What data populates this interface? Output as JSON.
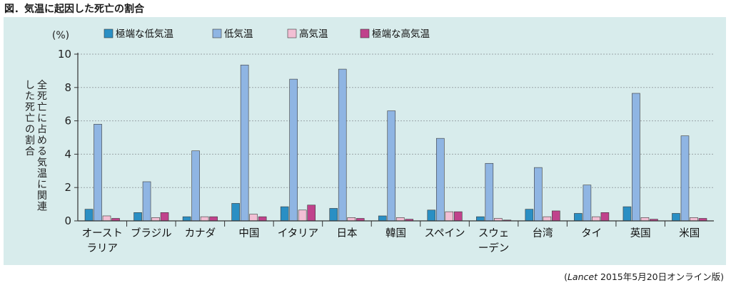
{
  "figure_title": "図．気温に起因した死亡の割合",
  "source_journal": "Lancet",
  "source_rest": " 2015年5月20日オンライン版)",
  "source_open": "(",
  "colors": {
    "panel_bg": "#d8ecec",
    "series": [
      "#2a8fc4",
      "#8fb5e3",
      "#f2bfd4",
      "#c0428c"
    ]
  },
  "chart_data": {
    "type": "bar",
    "y_unit": "(%)",
    "ylabel": "全死亡に占める気温に関連した死亡の割合",
    "ylim": [
      0,
      10
    ],
    "yticks": [
      "0",
      "2",
      "4",
      "6",
      "8",
      "10"
    ],
    "grid": true,
    "legend_position": "top",
    "categories": [
      [
        "オースト",
        "ラリア"
      ],
      [
        "ブラジル"
      ],
      [
        "カナダ"
      ],
      [
        "中国"
      ],
      [
        "イタリア"
      ],
      [
        "日本"
      ],
      [
        "韓国"
      ],
      [
        "スペイン"
      ],
      [
        "スウェ",
        "ーデン"
      ],
      [
        "台湾"
      ],
      [
        "タイ"
      ],
      [
        "英国"
      ],
      [
        "米国"
      ]
    ],
    "series": [
      {
        "name": "極端な低気温",
        "values": [
          0.7,
          0.5,
          0.25,
          1.05,
          0.85,
          0.75,
          0.3,
          0.65,
          0.25,
          0.7,
          0.45,
          0.85,
          0.45
        ]
      },
      {
        "name": "低気温",
        "values": [
          5.8,
          2.35,
          4.2,
          9.35,
          8.5,
          9.1,
          6.6,
          4.95,
          3.45,
          3.2,
          2.15,
          7.65,
          5.1
        ]
      },
      {
        "name": "高気温",
        "values": [
          0.3,
          0.2,
          0.25,
          0.4,
          0.65,
          0.2,
          0.2,
          0.55,
          0.15,
          0.25,
          0.25,
          0.2,
          0.2
        ]
      },
      {
        "name": "極端な高気温",
        "values": [
          0.15,
          0.5,
          0.25,
          0.25,
          0.95,
          0.15,
          0.1,
          0.55,
          0.05,
          0.6,
          0.5,
          0.1,
          0.15
        ]
      }
    ]
  }
}
